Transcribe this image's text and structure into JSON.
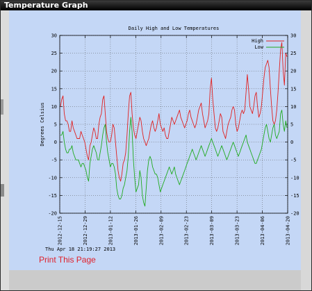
{
  "window": {
    "title": "Temperature Graph"
  },
  "print_link": "Print This Page",
  "timestamp": "Thu Apr 18 21:19:27 2013",
  "colors": {
    "high": "#e02020",
    "low": "#1faa1f",
    "panel": "#c4d7f6"
  },
  "chart_data": {
    "type": "line",
    "title": "Daily High and Low Temperatures",
    "ylabel": "Degrees Celsius",
    "xlabel": "",
    "ylim": [
      -20,
      30
    ],
    "yticks": [
      30,
      25,
      20,
      15,
      10,
      5,
      0,
      -5,
      -10,
      -15,
      -20
    ],
    "xticks": [
      "2012-12-15",
      "2012-12-29",
      "2013-01-12",
      "2013-01-26",
      "2013-02-09",
      "2013-02-23",
      "2013-03-09",
      "2013-03-23",
      "2013-04-06",
      "2013-04-20"
    ],
    "xlim": [
      "2012-12-15",
      "2013-04-20"
    ],
    "grid": true,
    "legend_position": "top-right",
    "series": [
      {
        "name": "High",
        "values": [
          10,
          12,
          13,
          8,
          6,
          6,
          5,
          3,
          3,
          6,
          4,
          3,
          2,
          1,
          1,
          1,
          3,
          2,
          1,
          0,
          -2,
          -4,
          -5,
          -1,
          0,
          2,
          4,
          3,
          1,
          1,
          5,
          7,
          8,
          12,
          13,
          8,
          3,
          1,
          0,
          0,
          2,
          5,
          4,
          0,
          -4,
          -8,
          -10,
          -11,
          -9,
          -6,
          -5,
          -3,
          2,
          8,
          13,
          14,
          8,
          4,
          2,
          1,
          3,
          5,
          7,
          6,
          3,
          1,
          0,
          -1,
          0,
          1,
          3,
          5,
          6,
          4,
          3,
          4,
          6,
          8,
          5,
          4,
          3,
          4,
          2,
          1,
          1,
          3,
          5,
          7,
          6,
          5,
          6,
          7,
          8,
          9,
          7,
          6,
          5,
          4,
          5,
          6,
          8,
          9,
          7,
          6,
          5,
          4,
          5,
          7,
          9,
          10,
          11,
          8,
          6,
          4,
          5,
          6,
          8,
          15,
          18,
          12,
          8,
          4,
          3,
          4,
          6,
          8,
          7,
          3,
          2,
          1,
          3,
          5,
          6,
          7,
          9,
          10,
          9,
          5,
          3,
          4,
          6,
          8,
          9,
          8,
          9,
          14,
          19,
          15,
          10,
          9,
          8,
          10,
          13,
          14,
          10,
          7,
          8,
          10,
          14,
          18,
          21,
          22,
          23,
          21,
          15,
          10,
          6,
          5,
          6,
          9,
          14,
          20,
          26,
          28,
          20,
          16,
          25,
          24
        ]
      },
      {
        "name": "Low",
        "values": [
          2,
          2,
          3,
          0,
          -2,
          -3,
          -3,
          -2,
          -2,
          -1,
          -3,
          -4,
          -5,
          -5,
          -5,
          -6,
          -7,
          -6,
          -6,
          -7,
          -8,
          -10,
          -11,
          -6,
          -4,
          -2,
          -1,
          -2,
          -3,
          -5,
          -5,
          -3,
          -1,
          2,
          4,
          5,
          0,
          -3,
          -5,
          -7,
          -6,
          -6,
          -7,
          -9,
          -13,
          -15,
          -16,
          -16,
          -15,
          -13,
          -12,
          -10,
          -8,
          -4,
          3,
          7,
          3,
          -5,
          -10,
          -14,
          -13,
          -12,
          -8,
          -10,
          -15,
          -17,
          -18,
          -13,
          -8,
          -5,
          -4,
          -5,
          -7,
          -8,
          -9,
          -9,
          -10,
          -12,
          -14,
          -13,
          -12,
          -11,
          -10,
          -9,
          -8,
          -7,
          -8,
          -9,
          -8,
          -7,
          -9,
          -10,
          -11,
          -12,
          -11,
          -10,
          -9,
          -8,
          -7,
          -6,
          -5,
          -4,
          -3,
          -2,
          -3,
          -4,
          -5,
          -4,
          -3,
          -2,
          -1,
          -2,
          -3,
          -4,
          -3,
          -2,
          -1,
          0,
          1,
          0,
          -1,
          -2,
          -3,
          -4,
          -3,
          -2,
          -1,
          -2,
          -3,
          -4,
          -5,
          -4,
          -3,
          -2,
          -1,
          0,
          -1,
          -2,
          -3,
          -4,
          -3,
          -2,
          -1,
          0,
          1,
          2,
          0,
          -1,
          -2,
          -3,
          -4,
          -5,
          -6,
          -6,
          -5,
          -4,
          -3,
          -2,
          0,
          2,
          4,
          5,
          3,
          1,
          0,
          2,
          4,
          5,
          2,
          1,
          2,
          3,
          8,
          9,
          5,
          3,
          6,
          4
        ]
      }
    ]
  }
}
